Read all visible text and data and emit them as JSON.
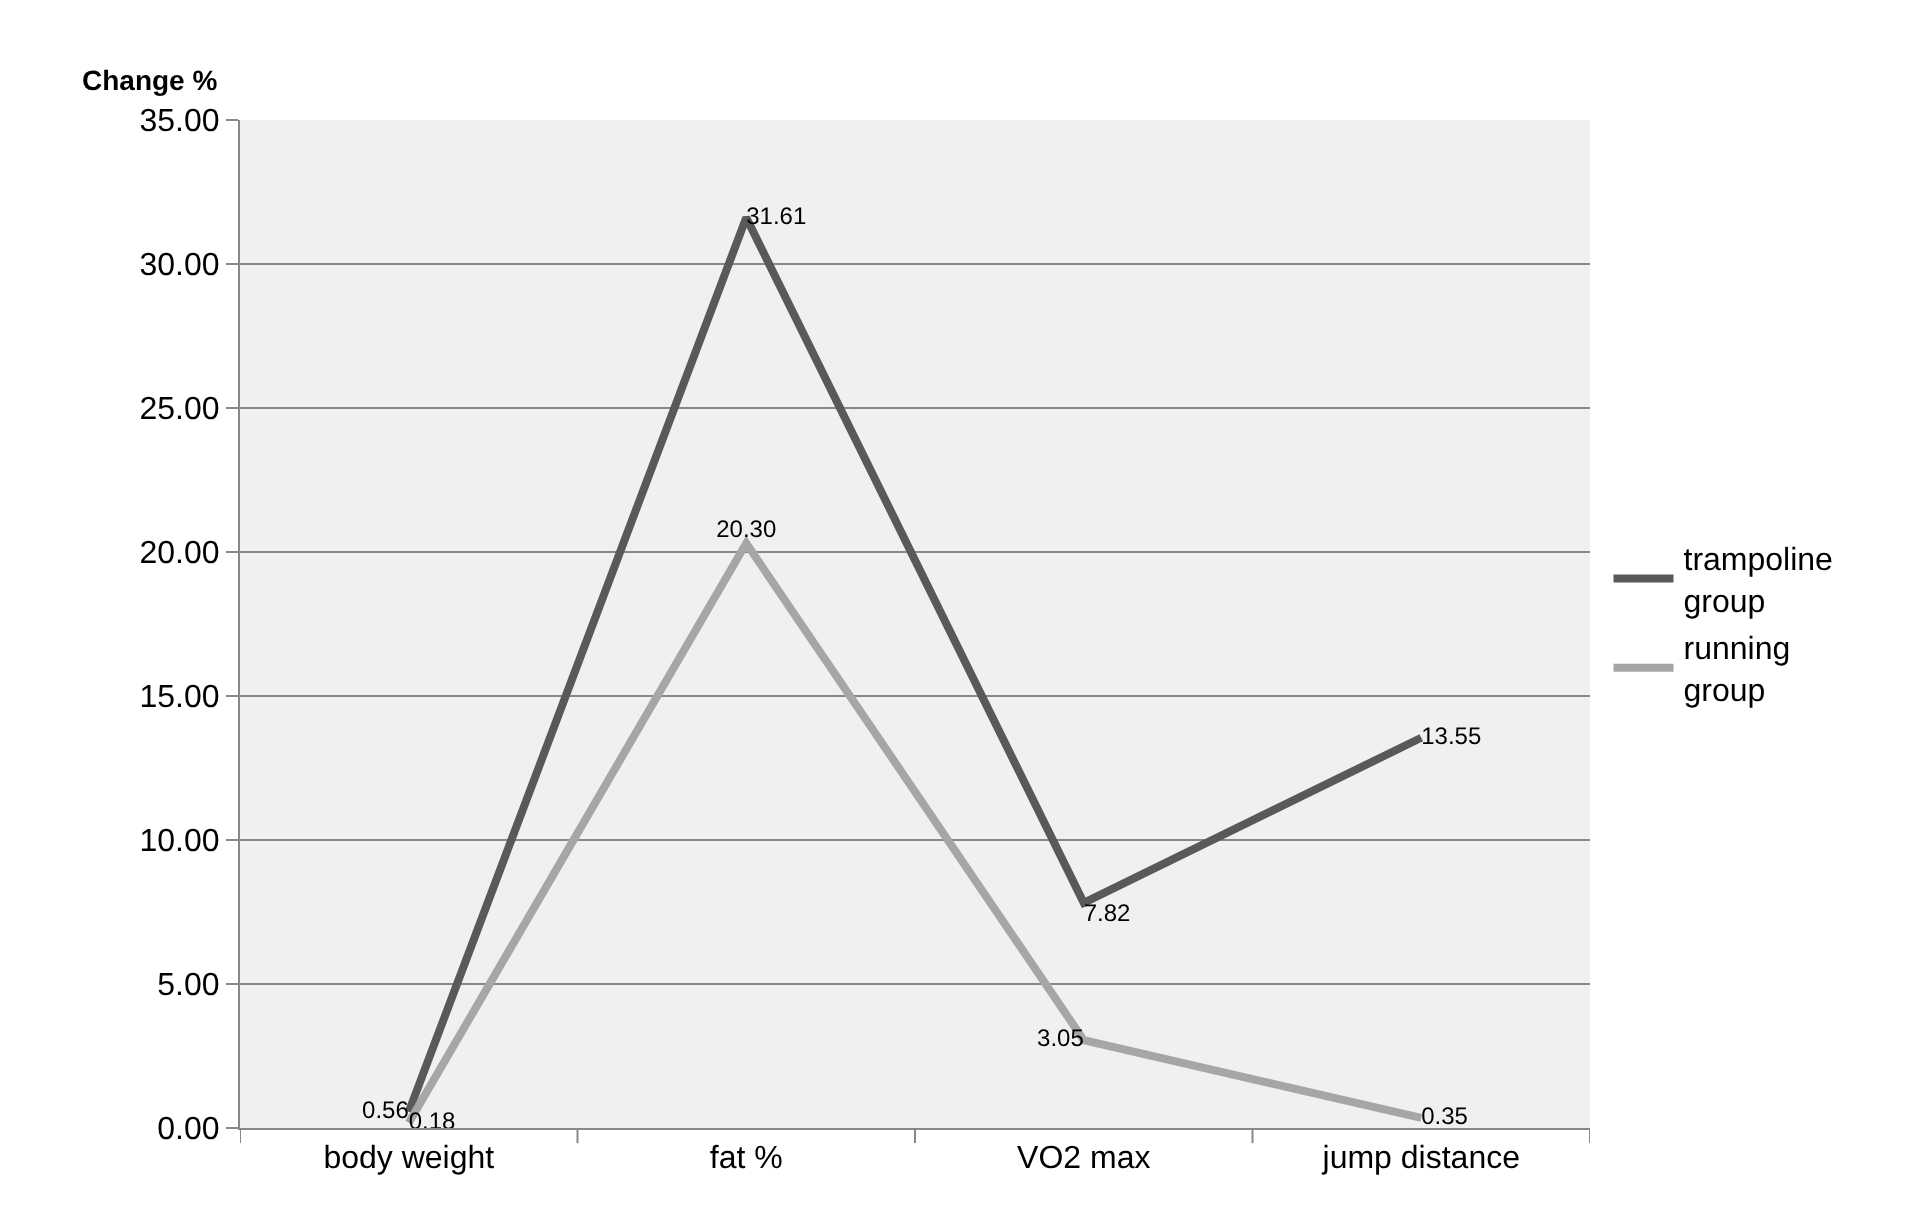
{
  "chart_data": {
    "type": "line",
    "ylabel": "Change %",
    "categories": [
      "body weight",
      "fat %",
      "VO2 max",
      "jump distance"
    ],
    "series": [
      {
        "name": "trampoline group",
        "color": "#595959",
        "values": [
          0.56,
          31.61,
          7.82,
          13.55
        ],
        "value_labels": [
          "0.56",
          "31.61",
          "7.82",
          "13.55"
        ]
      },
      {
        "name": "running group",
        "color": "#a6a6a6",
        "values": [
          0.18,
          20.3,
          3.05,
          0.35
        ],
        "value_labels": [
          "0.18",
          "20.30",
          "3.05",
          "0.35"
        ]
      }
    ],
    "ylim": [
      0,
      35
    ],
    "yticks": [
      {
        "value": 0,
        "label": "0.00"
      },
      {
        "value": 5,
        "label": "5.00"
      },
      {
        "value": 10,
        "label": "10.00"
      },
      {
        "value": 15,
        "label": "15.00"
      },
      {
        "value": 20,
        "label": "20.00"
      },
      {
        "value": 25,
        "label": "25.00"
      },
      {
        "value": 30,
        "label": "30.00"
      },
      {
        "value": 35,
        "label": "35.00"
      }
    ],
    "grid": "y",
    "legend": "right",
    "marker": "none",
    "line_style": "solid"
  }
}
